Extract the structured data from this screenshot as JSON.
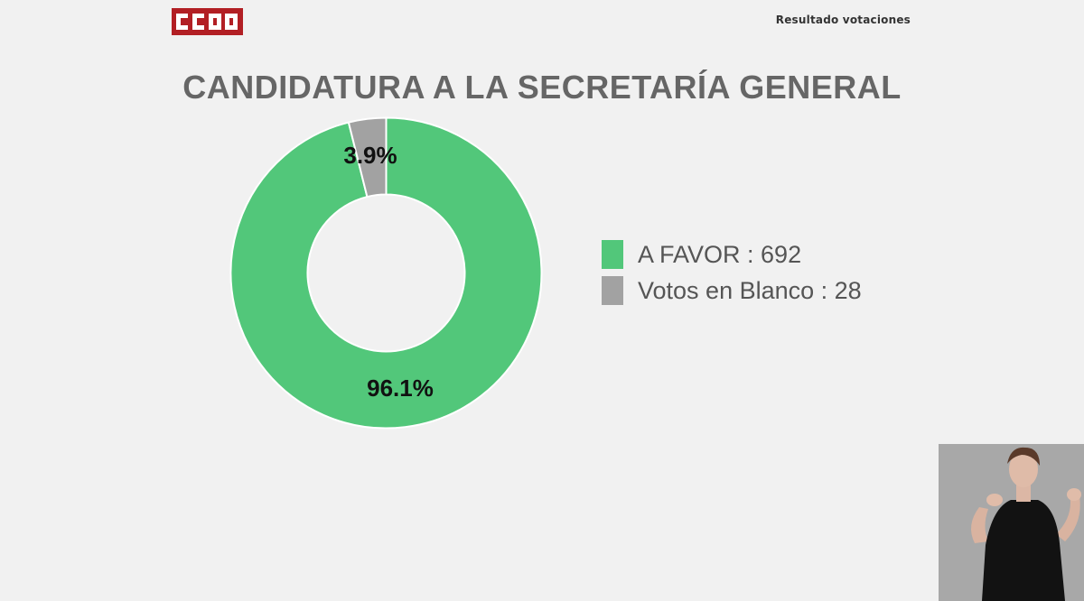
{
  "header": {
    "logo_text": "CCOO",
    "label": "Resultado votaciones"
  },
  "colors": {
    "favor": "#52c77a",
    "blanco": "#a2a2a2",
    "logo_red": "#b21f24",
    "background": "#f1f1f1"
  },
  "chart_data": {
    "type": "pie",
    "variant": "donut",
    "title": "CANDIDATURA A LA SECRETARÍA GENERAL",
    "legend_position": "right",
    "slices": [
      {
        "name": "A FAVOR",
        "value": 692,
        "percent_label": "96.1%",
        "color": "#52c77a"
      },
      {
        "name": "Votos en Blanco",
        "value": 28,
        "percent_label": "3.9%",
        "color": "#a2a2a2"
      }
    ],
    "legend": [
      {
        "label": "A FAVOR : 692",
        "color": "#52c77a"
      },
      {
        "label": "Votos en Blanco : 28",
        "color": "#a2a2a2"
      }
    ]
  },
  "video_inset": {
    "icon": "sign-language-interpreter-icon"
  }
}
